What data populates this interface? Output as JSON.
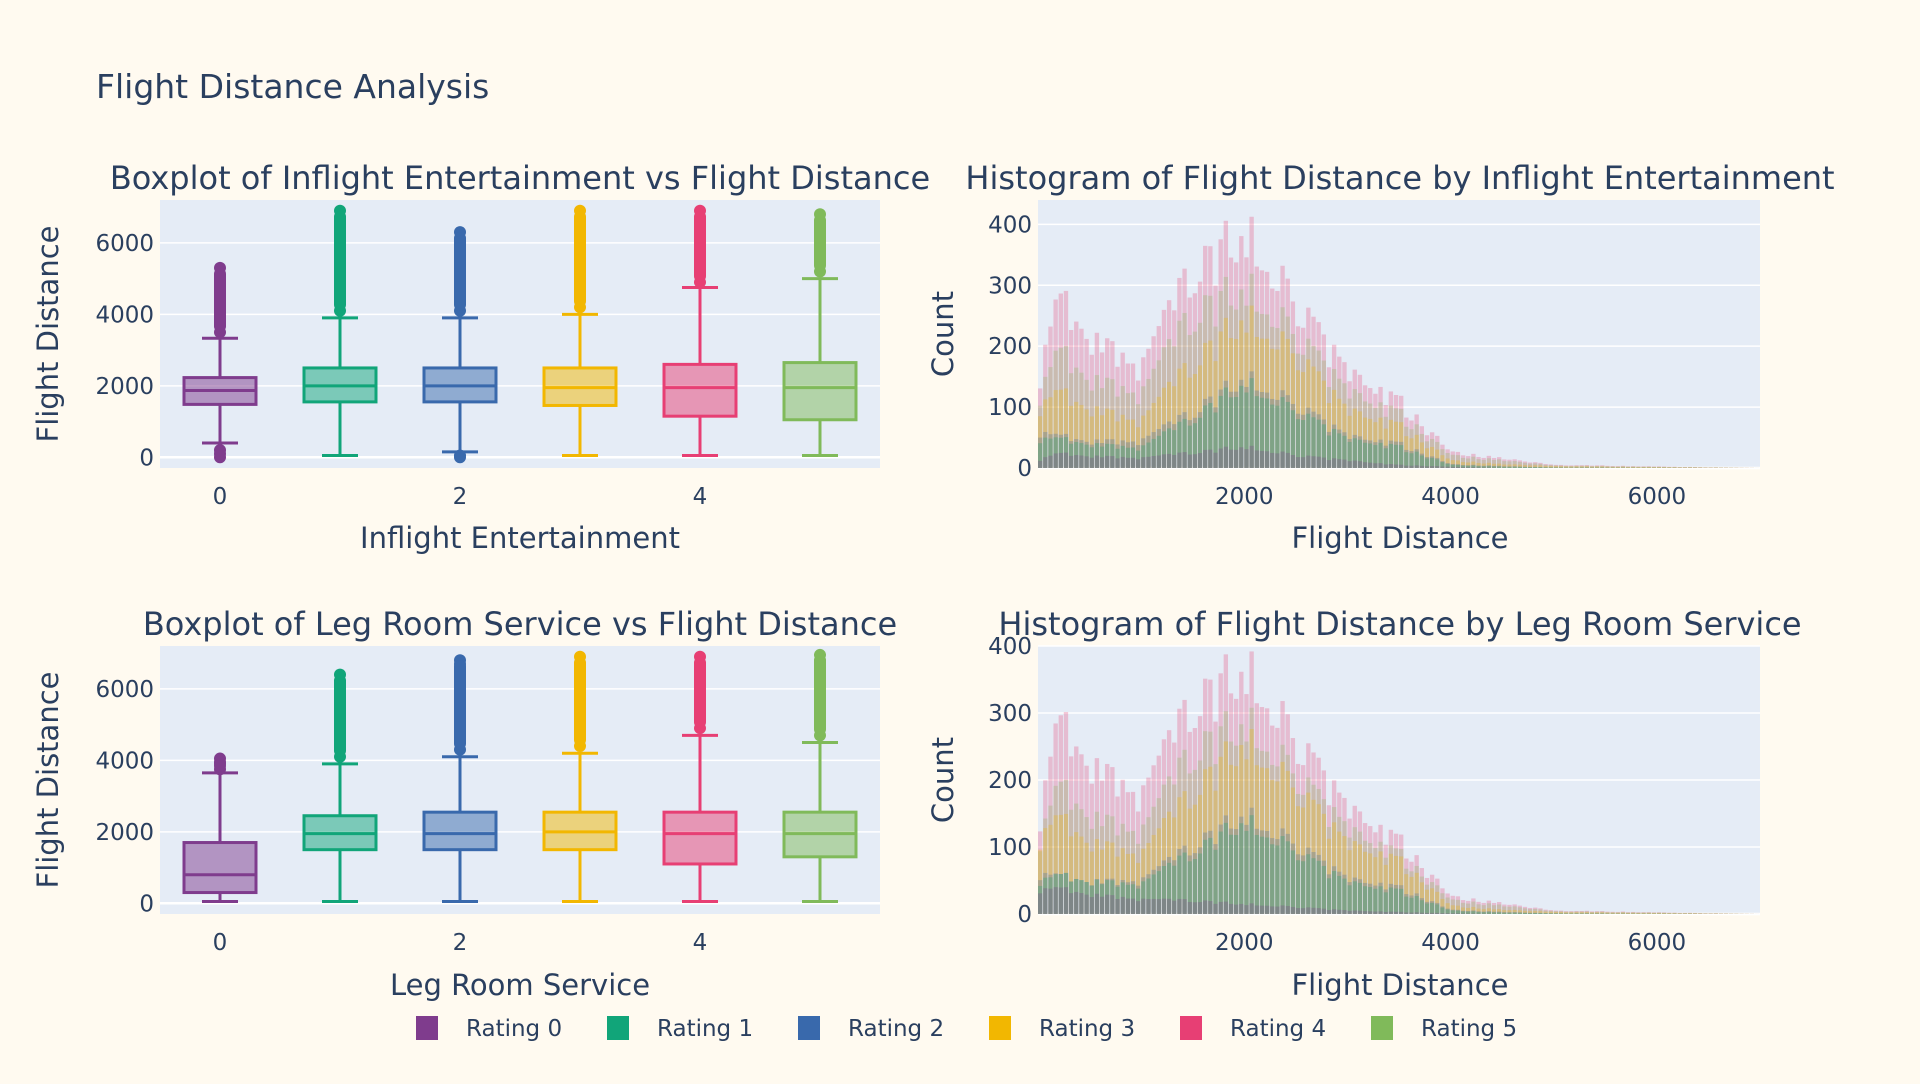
{
  "title": "Flight Distance Analysis",
  "colors": {
    "background": "#fffaf0",
    "plot_background": "#e5ecf6",
    "grid": "#ffffff",
    "text": "#2a3f5f"
  },
  "legend": {
    "placement": "bottom-center",
    "items": [
      {
        "label": "Rating 0",
        "color": "#7f3c8d"
      },
      {
        "label": "Rating 1",
        "color": "#11a579"
      },
      {
        "label": "Rating 2",
        "color": "#3969ac"
      },
      {
        "label": "Rating 3",
        "color": "#f2b701"
      },
      {
        "label": "Rating 4",
        "color": "#e73f74"
      },
      {
        "label": "Rating 5",
        "color": "#80ba5a"
      }
    ]
  },
  "chart_data": [
    {
      "type": "box",
      "title": "Boxplot of Inflight Entertainment vs Flight Distance",
      "xlabel": "Inflight Entertainment",
      "ylabel": "Flight Distance",
      "xlim": [
        -0.5,
        5.5
      ],
      "ylim": [
        -300,
        7200
      ],
      "x_ticks": [
        0,
        2,
        4
      ],
      "y_ticks": [
        0,
        2000,
        4000,
        6000
      ],
      "grid": true,
      "categories": [
        0,
        1,
        2,
        3,
        4,
        5
      ],
      "boxes": [
        {
          "name": "Rating 0",
          "x": 0,
          "min": 400,
          "q1": 1480,
          "median": 1870,
          "q3": 2230,
          "max": 3330,
          "outliers": [
            0,
            100,
            200,
            3500,
            3700,
            3900,
            4100,
            4300,
            4500,
            4800,
            5000,
            5300
          ]
        },
        {
          "name": "Rating 1",
          "x": 1,
          "min": 50,
          "q1": 1550,
          "median": 2000,
          "q3": 2500,
          "max": 3900,
          "outliers": [
            4100,
            4400,
            4700,
            5000,
            5300,
            5600,
            5900,
            6200,
            6500,
            6700,
            6900
          ]
        },
        {
          "name": "Rating 2",
          "x": 2,
          "min": 150,
          "q1": 1550,
          "median": 2000,
          "q3": 2500,
          "max": 3900,
          "outliers": [
            0,
            50,
            4100,
            4400,
            4700,
            5000,
            5300,
            5600,
            5900,
            6100,
            6300
          ]
        },
        {
          "name": "Rating 3",
          "x": 3,
          "min": 50,
          "q1": 1450,
          "median": 1950,
          "q3": 2500,
          "max": 4000,
          "outliers": [
            4200,
            4500,
            4800,
            5100,
            5400,
            5700,
            6000,
            6300,
            6600,
            6900
          ]
        },
        {
          "name": "Rating 4",
          "x": 4,
          "min": 50,
          "q1": 1150,
          "median": 1950,
          "q3": 2600,
          "max": 4750,
          "outliers": [
            4900,
            5200,
            5500,
            5800,
            6100,
            6400,
            6700,
            6900
          ]
        },
        {
          "name": "Rating 5",
          "x": 5,
          "min": 50,
          "q1": 1050,
          "median": 1950,
          "q3": 2650,
          "max": 5000,
          "outliers": [
            5200,
            5500,
            5800,
            6100,
            6400,
            6600,
            6800
          ]
        }
      ]
    },
    {
      "type": "histogram",
      "title": "Histogram of Flight Distance by Inflight Entertainment",
      "xlabel": "Flight Distance",
      "ylabel": "Count",
      "xlim": [
        0,
        7000
      ],
      "ylim": [
        0,
        440
      ],
      "x_ticks": [
        2000,
        4000,
        6000
      ],
      "y_ticks": [
        0,
        100,
        200,
        300,
        400
      ],
      "grid": true,
      "overlay": true,
      "bin_width": 50,
      "series": [
        {
          "name": "Rating 0",
          "x": [
            0,
            200,
            500,
            1000,
            1500,
            2000,
            2500,
            3000,
            3500,
            4000,
            4500,
            5000,
            7000
          ],
          "y": [
            10,
            25,
            20,
            15,
            25,
            35,
            20,
            12,
            5,
            2,
            0,
            0,
            0
          ]
        },
        {
          "name": "Rating 1",
          "x": [
            0,
            200,
            500,
            1000,
            1500,
            2000,
            2500,
            3000,
            3500,
            4000,
            4500,
            5000,
            7000
          ],
          "y": [
            40,
            50,
            40,
            30,
            80,
            140,
            90,
            45,
            35,
            5,
            2,
            1,
            0
          ]
        },
        {
          "name": "Rating 2",
          "x": [
            0,
            200,
            500,
            1000,
            1500,
            2000,
            2500,
            3000,
            3500,
            4000,
            4500,
            5000,
            7000
          ],
          "y": [
            50,
            55,
            45,
            40,
            90,
            150,
            100,
            50,
            40,
            6,
            3,
            1,
            0
          ]
        },
        {
          "name": "Rating 3",
          "x": [
            0,
            200,
            500,
            1000,
            1500,
            2000,
            2500,
            3000,
            3500,
            4000,
            4500,
            5000,
            7000
          ],
          "y": [
            80,
            130,
            100,
            70,
            170,
            250,
            180,
            90,
            70,
            12,
            6,
            3,
            0
          ]
        },
        {
          "name": "Rating 4",
          "x": [
            0,
            200,
            500,
            1000,
            1500,
            2000,
            2500,
            3000,
            3500,
            4000,
            4500,
            5000,
            7000
          ],
          "y": [
            110,
            290,
            220,
            150,
            320,
            390,
            260,
            150,
            110,
            25,
            15,
            5,
            0
          ]
        },
        {
          "name": "Rating 5",
          "x": [
            0,
            200,
            500,
            1000,
            1500,
            2000,
            2500,
            3000,
            3500,
            4000,
            4500,
            5000,
            7000
          ],
          "y": [
            90,
            200,
            150,
            110,
            250,
            300,
            210,
            120,
            90,
            20,
            12,
            4,
            0
          ]
        }
      ]
    },
    {
      "type": "box",
      "title": "Boxplot of Leg Room Service vs Flight Distance",
      "xlabel": "Leg Room Service",
      "ylabel": "Flight Distance",
      "xlim": [
        -0.5,
        5.5
      ],
      "ylim": [
        -300,
        7200
      ],
      "x_ticks": [
        0,
        2,
        4
      ],
      "y_ticks": [
        0,
        2000,
        4000,
        6000
      ],
      "grid": true,
      "categories": [
        0,
        1,
        2,
        3,
        4,
        5
      ],
      "boxes": [
        {
          "name": "Rating 0",
          "x": 0,
          "min": 50,
          "q1": 300,
          "median": 800,
          "q3": 1700,
          "max": 3650,
          "outliers": [
            3750,
            3850,
            3950,
            4050
          ]
        },
        {
          "name": "Rating 1",
          "x": 1,
          "min": 50,
          "q1": 1500,
          "median": 1950,
          "q3": 2450,
          "max": 3900,
          "outliers": [
            4100,
            4400,
            4700,
            5000,
            5300,
            5600,
            5900,
            6200,
            6400
          ]
        },
        {
          "name": "Rating 2",
          "x": 2,
          "min": 50,
          "q1": 1500,
          "median": 1950,
          "q3": 2550,
          "max": 4100,
          "outliers": [
            4300,
            4600,
            4900,
            5200,
            5500,
            5800,
            6500,
            6700,
            6800
          ]
        },
        {
          "name": "Rating 3",
          "x": 3,
          "min": 50,
          "q1": 1500,
          "median": 2000,
          "q3": 2550,
          "max": 4200,
          "outliers": [
            4400,
            4700,
            5000,
            5300,
            5600,
            5900,
            6200,
            6500,
            6700,
            6900
          ]
        },
        {
          "name": "Rating 4",
          "x": 4,
          "min": 50,
          "q1": 1100,
          "median": 1950,
          "q3": 2550,
          "max": 4700,
          "outliers": [
            4900,
            5200,
            5500,
            5800,
            6100,
            6400,
            6700,
            6900
          ]
        },
        {
          "name": "Rating 5",
          "x": 5,
          "min": 50,
          "q1": 1300,
          "median": 1950,
          "q3": 2550,
          "max": 4500,
          "outliers": [
            4700,
            5000,
            5300,
            5600,
            5900,
            6200,
            6500,
            6800,
            6950
          ]
        }
      ]
    },
    {
      "type": "histogram",
      "title": "Histogram of Flight Distance by Leg Room Service",
      "xlabel": "Flight Distance",
      "ylabel": "Count",
      "xlim": [
        0,
        7000
      ],
      "ylim": [
        0,
        400
      ],
      "x_ticks": [
        2000,
        4000,
        6000
      ],
      "y_ticks": [
        0,
        100,
        200,
        300,
        400
      ],
      "grid": true,
      "overlay": true,
      "bin_width": 50,
      "series": [
        {
          "name": "Rating 0",
          "x": [
            0,
            200,
            500,
            1000,
            1500,
            2000,
            2500,
            3000,
            3500,
            4000,
            4500,
            5000,
            7000
          ],
          "y": [
            30,
            40,
            30,
            20,
            20,
            15,
            10,
            5,
            3,
            1,
            0,
            0,
            0
          ]
        },
        {
          "name": "Rating 1",
          "x": [
            0,
            200,
            500,
            1000,
            1500,
            2000,
            2500,
            3000,
            3500,
            4000,
            4500,
            5000,
            7000
          ],
          "y": [
            40,
            60,
            50,
            40,
            90,
            140,
            90,
            45,
            35,
            5,
            2,
            1,
            0
          ]
        },
        {
          "name": "Rating 2",
          "x": [
            0,
            200,
            500,
            1000,
            1500,
            2000,
            2500,
            3000,
            3500,
            4000,
            4500,
            5000,
            7000
          ],
          "y": [
            50,
            60,
            50,
            45,
            100,
            150,
            100,
            50,
            40,
            6,
            3,
            1,
            0
          ]
        },
        {
          "name": "Rating 3",
          "x": [
            0,
            200,
            500,
            1000,
            1500,
            2000,
            2500,
            3000,
            3500,
            4000,
            4500,
            5000,
            7000
          ],
          "y": [
            90,
            150,
            110,
            80,
            180,
            260,
            180,
            100,
            80,
            12,
            6,
            3,
            0
          ]
        },
        {
          "name": "Rating 4",
          "x": [
            0,
            200,
            500,
            1000,
            1500,
            2000,
            2500,
            3000,
            3500,
            4000,
            4500,
            5000,
            7000
          ],
          "y": [
            100,
            300,
            230,
            160,
            310,
            370,
            250,
            150,
            110,
            25,
            15,
            5,
            0
          ]
        },
        {
          "name": "Rating 5",
          "x": [
            0,
            200,
            500,
            1000,
            1500,
            2000,
            2500,
            3000,
            3500,
            4000,
            4500,
            5000,
            7000
          ],
          "y": [
            80,
            200,
            150,
            110,
            240,
            290,
            200,
            120,
            90,
            20,
            12,
            4,
            0
          ]
        }
      ]
    }
  ]
}
